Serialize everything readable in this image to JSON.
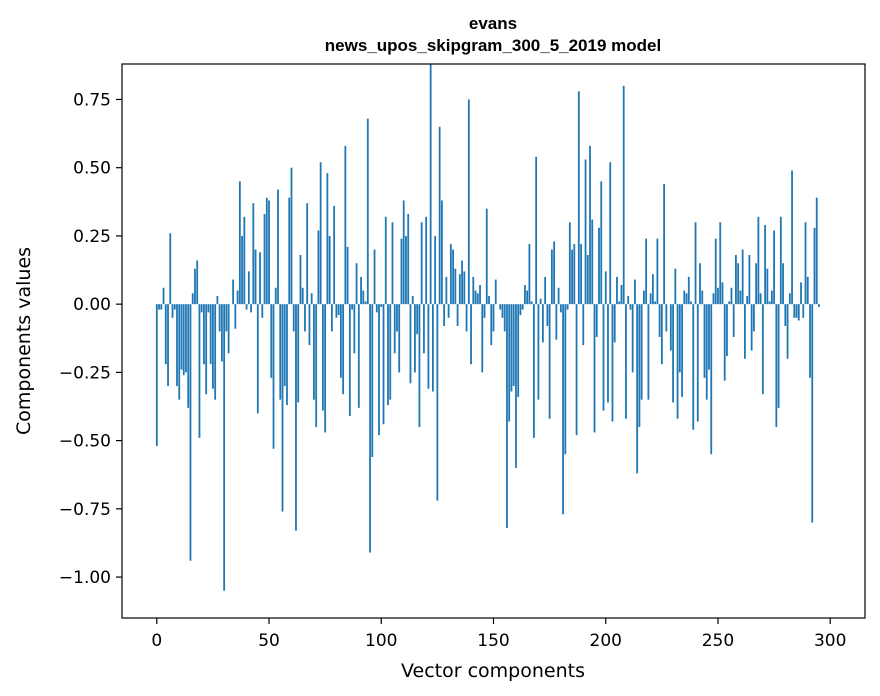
{
  "chart_data": {
    "type": "bar",
    "title_line1": "evans",
    "title_line2": "news_upos_skipgram_300_5_2019 model",
    "xlabel": "Vector components",
    "ylabel": "Components values",
    "xlim": [
      -15.5,
      315.5
    ],
    "ylim": [
      -1.15,
      0.88
    ],
    "xticks": [
      0,
      50,
      100,
      150,
      200,
      250,
      300
    ],
    "xtick_labels": [
      "0",
      "50",
      "100",
      "150",
      "200",
      "250",
      "300"
    ],
    "yticks": [
      0.75,
      0.5,
      0.25,
      0.0,
      -0.25,
      -0.5,
      -0.75,
      -1.0
    ],
    "ytick_labels": [
      "0.75",
      "0.50",
      "0.25",
      "0.00",
      "−0.25",
      "−0.50",
      "−0.75",
      "−1.00"
    ],
    "bar_color": "#1f77b4",
    "values": [
      -0.52,
      -0.02,
      -0.02,
      0.06,
      -0.22,
      -0.3,
      0.26,
      -0.05,
      -0.02,
      -0.3,
      -0.35,
      -0.24,
      -0.26,
      -0.25,
      -0.38,
      -0.94,
      0.04,
      0.13,
      0.16,
      -0.49,
      -0.03,
      -0.22,
      -0.33,
      -0.03,
      -0.22,
      -0.31,
      -0.35,
      0.03,
      -0.1,
      -0.21,
      -1.05,
      -0.1,
      -0.18,
      0.0,
      0.09,
      -0.09,
      0.05,
      0.45,
      0.25,
      0.32,
      -0.02,
      0.12,
      -0.03,
      0.37,
      0.2,
      -0.4,
      0.19,
      -0.05,
      0.33,
      0.39,
      0.38,
      -0.27,
      -0.53,
      0.06,
      0.42,
      -0.35,
      -0.76,
      -0.3,
      -0.37,
      0.39,
      0.5,
      -0.1,
      -0.83,
      -0.36,
      0.18,
      0.06,
      -0.1,
      0.37,
      -0.15,
      0.04,
      -0.35,
      -0.45,
      0.27,
      0.52,
      -0.39,
      -0.47,
      0.48,
      0.25,
      -0.1,
      0.36,
      -0.05,
      -0.04,
      -0.27,
      -0.33,
      0.58,
      0.21,
      -0.41,
      -0.02,
      -0.18,
      0.15,
      -0.38,
      0.1,
      0.05,
      0.01,
      0.68,
      -0.91,
      -0.56,
      0.2,
      -0.03,
      -0.48,
      -0.01,
      -0.44,
      0.32,
      -0.37,
      -0.35,
      0.3,
      -0.18,
      -0.1,
      -0.25,
      0.24,
      0.38,
      0.25,
      0.33,
      -0.29,
      0.03,
      -0.25,
      -0.11,
      -0.45,
      0.3,
      -0.18,
      0.32,
      -0.31,
      0.88,
      -0.32,
      0.25,
      -0.72,
      0.65,
      0.38,
      -0.08,
      0.1,
      -0.05,
      0.22,
      0.2,
      0.13,
      -0.08,
      0.11,
      0.16,
      0.12,
      -0.1,
      0.75,
      -0.22,
      0.1,
      0.05,
      0.04,
      0.07,
      -0.25,
      -0.05,
      0.35,
      0.03,
      -0.15,
      -0.1,
      0.09,
      0.0,
      -0.02,
      -0.05,
      -0.1,
      -0.82,
      -0.43,
      -0.32,
      -0.3,
      -0.6,
      -0.34,
      -0.04,
      -0.02,
      0.07,
      0.05,
      0.22,
      0.01,
      -0.49,
      0.54,
      -0.35,
      0.02,
      -0.14,
      0.1,
      -0.08,
      -0.42,
      0.2,
      0.23,
      -0.13,
      0.06,
      -0.03,
      -0.77,
      -0.55,
      -0.02,
      0.3,
      0.2,
      0.22,
      -0.48,
      0.78,
      0.22,
      -0.15,
      0.53,
      0.18,
      0.58,
      0.31,
      -0.47,
      -0.12,
      0.28,
      0.45,
      -0.39,
      0.12,
      -0.36,
      0.52,
      -0.43,
      -0.14,
      0.1,
      0.01,
      0.07,
      0.8,
      -0.42,
      0.03,
      -0.02,
      -0.25,
      0.09,
      -0.62,
      -0.45,
      -0.35,
      0.05,
      0.24,
      -0.35,
      0.04,
      0.11,
      0.01,
      0.24,
      -0.12,
      -0.22,
      0.44,
      -0.1,
      0.0,
      -0.17,
      -0.36,
      0.13,
      -0.42,
      -0.25,
      -0.34,
      0.05,
      0.04,
      0.1,
      0.01,
      -0.46,
      0.3,
      -0.43,
      0.15,
      0.05,
      -0.27,
      -0.35,
      -0.24,
      -0.55,
      0.04,
      0.24,
      0.06,
      0.3,
      0.08,
      -0.28,
      -0.19,
      0.01,
      0.06,
      -0.12,
      0.18,
      0.15,
      0.05,
      0.2,
      -0.2,
      0.03,
      0.18,
      -0.17,
      -0.1,
      0.15,
      0.32,
      0.04,
      -0.33,
      0.29,
      0.13,
      0.01,
      0.05,
      0.27,
      -0.45,
      -0.38,
      0.32,
      0.15,
      -0.08,
      -0.2,
      0.04,
      0.49,
      -0.05,
      -0.05,
      -0.06,
      0.08,
      -0.05,
      0.3,
      0.1,
      -0.27,
      -0.8,
      0.28,
      0.39,
      -0.01
    ]
  }
}
